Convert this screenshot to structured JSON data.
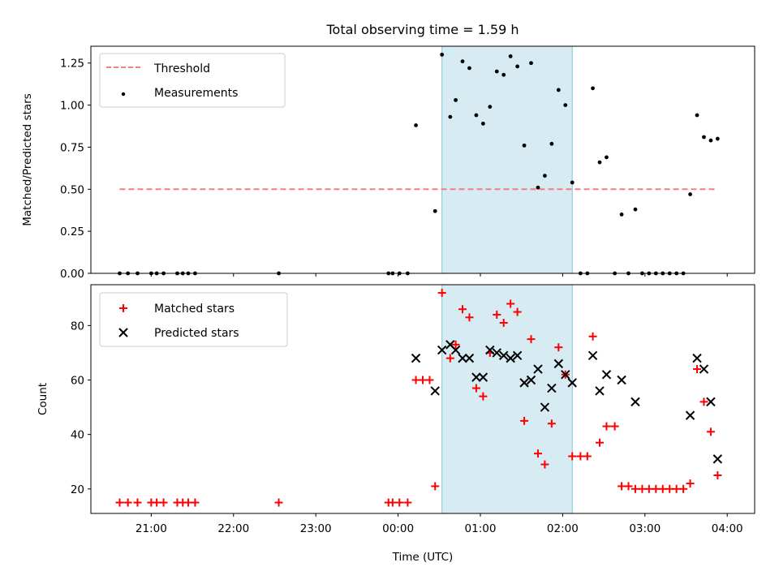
{
  "chart_data": [
    {
      "type": "scatter",
      "title": "Total observing time = 1.59 h",
      "xlabel": "",
      "ylabel": "Matched/Predicted stars",
      "xlim": [
        "20:16",
        "04:20"
      ],
      "ylim": [
        0.0,
        1.35
      ],
      "x_tick_labels": [
        "21:00",
        "22:00",
        "23:00",
        "00:00",
        "01:00",
        "02:00",
        "03:00",
        "04:00"
      ],
      "y_ticks": [
        "0.00",
        "0.25",
        "0.50",
        "0.75",
        "1.00",
        "1.25"
      ],
      "shaded_interval": {
        "x_start": "00:32",
        "x_end": "02:07",
        "color": "#add8e6"
      },
      "legend_position": "upper left",
      "series": [
        {
          "name": "Threshold",
          "kind": "line",
          "style": "dashed",
          "color": "#f08080",
          "points": [
            {
              "x": "20:37",
              "y": 0.5
            },
            {
              "x": "03:52",
              "y": 0.5
            }
          ]
        },
        {
          "name": "Measurements",
          "kind": "scatter",
          "marker": "dot",
          "color": "#000000",
          "points": [
            {
              "x": "20:37",
              "y": 0
            },
            {
              "x": "20:43",
              "y": 0
            },
            {
              "x": "20:50",
              "y": 0
            },
            {
              "x": "21:00",
              "y": 0
            },
            {
              "x": "21:04",
              "y": 0
            },
            {
              "x": "21:09",
              "y": 0
            },
            {
              "x": "21:19",
              "y": 0
            },
            {
              "x": "21:23",
              "y": 0
            },
            {
              "x": "21:27",
              "y": 0
            },
            {
              "x": "21:32",
              "y": 0
            },
            {
              "x": "22:33",
              "y": 0
            },
            {
              "x": "23:53",
              "y": 0
            },
            {
              "x": "23:56",
              "y": 0
            },
            {
              "x": "00:01",
              "y": 0
            },
            {
              "x": "00:07",
              "y": 0
            },
            {
              "x": "00:13",
              "y": 0.88
            },
            {
              "x": "00:27",
              "y": 0.37
            },
            {
              "x": "00:32",
              "y": 1.3
            },
            {
              "x": "00:38",
              "y": 0.93
            },
            {
              "x": "00:42",
              "y": 1.03
            },
            {
              "x": "00:47",
              "y": 1.26
            },
            {
              "x": "00:52",
              "y": 1.22
            },
            {
              "x": "00:57",
              "y": 0.94
            },
            {
              "x": "01:02",
              "y": 0.89
            },
            {
              "x": "01:07",
              "y": 0.99
            },
            {
              "x": "01:12",
              "y": 1.2
            },
            {
              "x": "01:17",
              "y": 1.18
            },
            {
              "x": "01:22",
              "y": 1.29
            },
            {
              "x": "01:27",
              "y": 1.23
            },
            {
              "x": "01:32",
              "y": 0.76
            },
            {
              "x": "01:37",
              "y": 1.25
            },
            {
              "x": "01:42",
              "y": 0.51
            },
            {
              "x": "01:47",
              "y": 0.58
            },
            {
              "x": "01:52",
              "y": 0.77
            },
            {
              "x": "01:57",
              "y": 1.09
            },
            {
              "x": "02:02",
              "y": 1.0
            },
            {
              "x": "02:07",
              "y": 0.54
            },
            {
              "x": "02:13",
              "y": 0
            },
            {
              "x": "02:18",
              "y": 0
            },
            {
              "x": "02:22",
              "y": 1.1
            },
            {
              "x": "02:27",
              "y": 0.66
            },
            {
              "x": "02:32",
              "y": 0.69
            },
            {
              "x": "02:38",
              "y": 0
            },
            {
              "x": "02:43",
              "y": 0.35
            },
            {
              "x": "02:48",
              "y": 0
            },
            {
              "x": "02:53",
              "y": 0.38
            },
            {
              "x": "02:58",
              "y": 0
            },
            {
              "x": "03:03",
              "y": 0
            },
            {
              "x": "03:08",
              "y": 0
            },
            {
              "x": "03:13",
              "y": 0
            },
            {
              "x": "03:18",
              "y": 0
            },
            {
              "x": "03:23",
              "y": 0
            },
            {
              "x": "03:28",
              "y": 0
            },
            {
              "x": "03:33",
              "y": 0.47
            },
            {
              "x": "03:38",
              "y": 0.94
            },
            {
              "x": "03:43",
              "y": 0.81
            },
            {
              "x": "03:48",
              "y": 0.79
            },
            {
              "x": "03:53",
              "y": 0.8
            }
          ]
        }
      ]
    },
    {
      "type": "scatter",
      "title": "",
      "xlabel": "Time (UTC)",
      "ylabel": "Count",
      "xlim": [
        "20:16",
        "04:20"
      ],
      "ylim": [
        11,
        95
      ],
      "x_tick_labels": [
        "21:00",
        "22:00",
        "23:00",
        "00:00",
        "01:00",
        "02:00",
        "03:00",
        "04:00"
      ],
      "y_ticks": [
        "20",
        "40",
        "60",
        "80"
      ],
      "shaded_interval": {
        "x_start": "00:32",
        "x_end": "02:07",
        "color": "#add8e6"
      },
      "legend_position": "upper left",
      "series": [
        {
          "name": "Matched stars",
          "kind": "scatter",
          "marker": "plus",
          "color": "#ff0000",
          "points": [
            {
              "x": "20:37",
              "y": 15
            },
            {
              "x": "20:43",
              "y": 15
            },
            {
              "x": "20:50",
              "y": 15
            },
            {
              "x": "21:00",
              "y": 15
            },
            {
              "x": "21:04",
              "y": 15
            },
            {
              "x": "21:09",
              "y": 15
            },
            {
              "x": "21:19",
              "y": 15
            },
            {
              "x": "21:23",
              "y": 15
            },
            {
              "x": "21:27",
              "y": 15
            },
            {
              "x": "21:32",
              "y": 15
            },
            {
              "x": "22:33",
              "y": 15
            },
            {
              "x": "23:53",
              "y": 15
            },
            {
              "x": "23:56",
              "y": 15
            },
            {
              "x": "00:01",
              "y": 15
            },
            {
              "x": "00:07",
              "y": 15
            },
            {
              "x": "00:13",
              "y": 60
            },
            {
              "x": "00:18",
              "y": 60
            },
            {
              "x": "00:23",
              "y": 60
            },
            {
              "x": "00:27",
              "y": 21
            },
            {
              "x": "00:32",
              "y": 92
            },
            {
              "x": "00:38",
              "y": 68
            },
            {
              "x": "00:42",
              "y": 73
            },
            {
              "x": "00:47",
              "y": 86
            },
            {
              "x": "00:52",
              "y": 83
            },
            {
              "x": "00:57",
              "y": 57
            },
            {
              "x": "01:02",
              "y": 54
            },
            {
              "x": "01:07",
              "y": 70
            },
            {
              "x": "01:12",
              "y": 84
            },
            {
              "x": "01:17",
              "y": 81
            },
            {
              "x": "01:22",
              "y": 88
            },
            {
              "x": "01:27",
              "y": 85
            },
            {
              "x": "01:32",
              "y": 45
            },
            {
              "x": "01:37",
              "y": 75
            },
            {
              "x": "01:42",
              "y": 33
            },
            {
              "x": "01:47",
              "y": 29
            },
            {
              "x": "01:52",
              "y": 44
            },
            {
              "x": "01:57",
              "y": 72
            },
            {
              "x": "02:02",
              "y": 62
            },
            {
              "x": "02:07",
              "y": 32
            },
            {
              "x": "02:13",
              "y": 32
            },
            {
              "x": "02:18",
              "y": 32
            },
            {
              "x": "02:22",
              "y": 76
            },
            {
              "x": "02:27",
              "y": 37
            },
            {
              "x": "02:32",
              "y": 43
            },
            {
              "x": "02:38",
              "y": 43
            },
            {
              "x": "02:43",
              "y": 21
            },
            {
              "x": "02:48",
              "y": 21
            },
            {
              "x": "02:53",
              "y": 20
            },
            {
              "x": "02:58",
              "y": 20
            },
            {
              "x": "03:03",
              "y": 20
            },
            {
              "x": "03:08",
              "y": 20
            },
            {
              "x": "03:13",
              "y": 20
            },
            {
              "x": "03:18",
              "y": 20
            },
            {
              "x": "03:23",
              "y": 20
            },
            {
              "x": "03:28",
              "y": 20
            },
            {
              "x": "03:33",
              "y": 22
            },
            {
              "x": "03:38",
              "y": 64
            },
            {
              "x": "03:43",
              "y": 52
            },
            {
              "x": "03:48",
              "y": 41
            },
            {
              "x": "03:53",
              "y": 25
            }
          ]
        },
        {
          "name": "Predicted stars",
          "kind": "scatter",
          "marker": "x",
          "color": "#000000",
          "points": [
            {
              "x": "00:13",
              "y": 68
            },
            {
              "x": "00:27",
              "y": 56
            },
            {
              "x": "00:32",
              "y": 71
            },
            {
              "x": "00:38",
              "y": 73
            },
            {
              "x": "00:42",
              "y": 71
            },
            {
              "x": "00:47",
              "y": 68
            },
            {
              "x": "00:52",
              "y": 68
            },
            {
              "x": "00:57",
              "y": 61
            },
            {
              "x": "01:02",
              "y": 61
            },
            {
              "x": "01:07",
              "y": 71
            },
            {
              "x": "01:12",
              "y": 70
            },
            {
              "x": "01:17",
              "y": 69
            },
            {
              "x": "01:22",
              "y": 68
            },
            {
              "x": "01:27",
              "y": 69
            },
            {
              "x": "01:32",
              "y": 59
            },
            {
              "x": "01:37",
              "y": 60
            },
            {
              "x": "01:42",
              "y": 64
            },
            {
              "x": "01:47",
              "y": 50
            },
            {
              "x": "01:52",
              "y": 57
            },
            {
              "x": "01:57",
              "y": 66
            },
            {
              "x": "02:02",
              "y": 62
            },
            {
              "x": "02:07",
              "y": 59
            },
            {
              "x": "02:22",
              "y": 69
            },
            {
              "x": "02:27",
              "y": 56
            },
            {
              "x": "02:32",
              "y": 62
            },
            {
              "x": "02:43",
              "y": 60
            },
            {
              "x": "02:53",
              "y": 52
            },
            {
              "x": "03:33",
              "y": 47
            },
            {
              "x": "03:38",
              "y": 68
            },
            {
              "x": "03:43",
              "y": 64
            },
            {
              "x": "03:48",
              "y": 52
            },
            {
              "x": "03:53",
              "y": 31
            }
          ]
        }
      ]
    }
  ]
}
